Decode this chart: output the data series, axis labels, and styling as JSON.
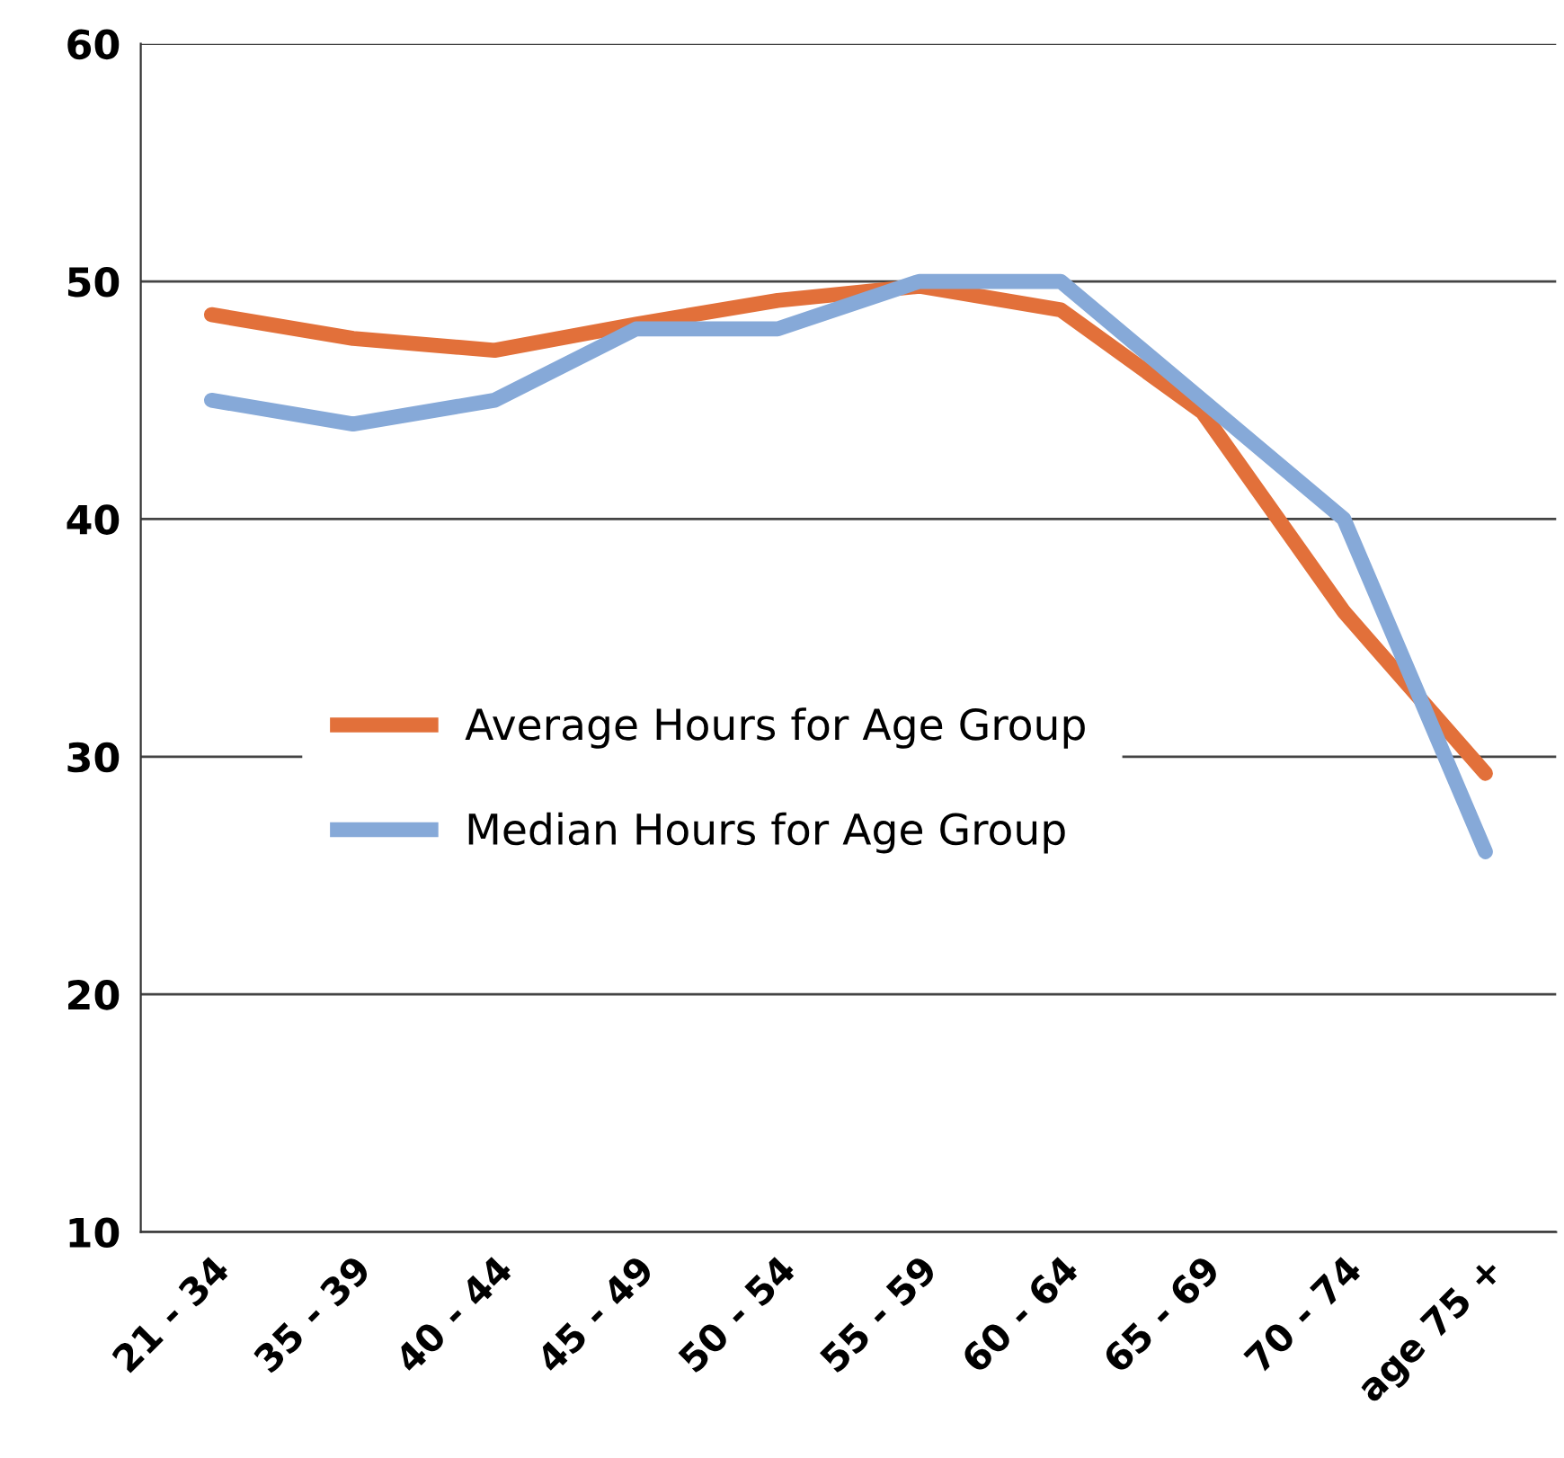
{
  "chart_data": {
    "type": "line",
    "categories": [
      "21 - 34",
      "35 - 39",
      "40 - 44",
      "45 - 49",
      "50 - 54",
      "55 - 59",
      "60 - 64",
      "65 - 69",
      "70 - 74",
      "age 75 +"
    ],
    "series": [
      {
        "name": "Average Hours for Age Group",
        "color": "#e2703a",
        "values": [
          48.6,
          47.6,
          47.1,
          48.2,
          49.2,
          49.8,
          48.8,
          44.5,
          36.1,
          29.3
        ]
      },
      {
        "name": "Median Hours for Age Group",
        "color": "#86a9d8",
        "values": [
          45,
          44,
          45,
          48,
          48,
          50,
          50,
          45,
          40,
          26
        ]
      }
    ],
    "ylim": [
      10,
      60
    ],
    "yticks": [
      10,
      20,
      30,
      40,
      50,
      60
    ],
    "grid": "y",
    "legend": "left",
    "marker": "none",
    "line_style": "solid"
  }
}
